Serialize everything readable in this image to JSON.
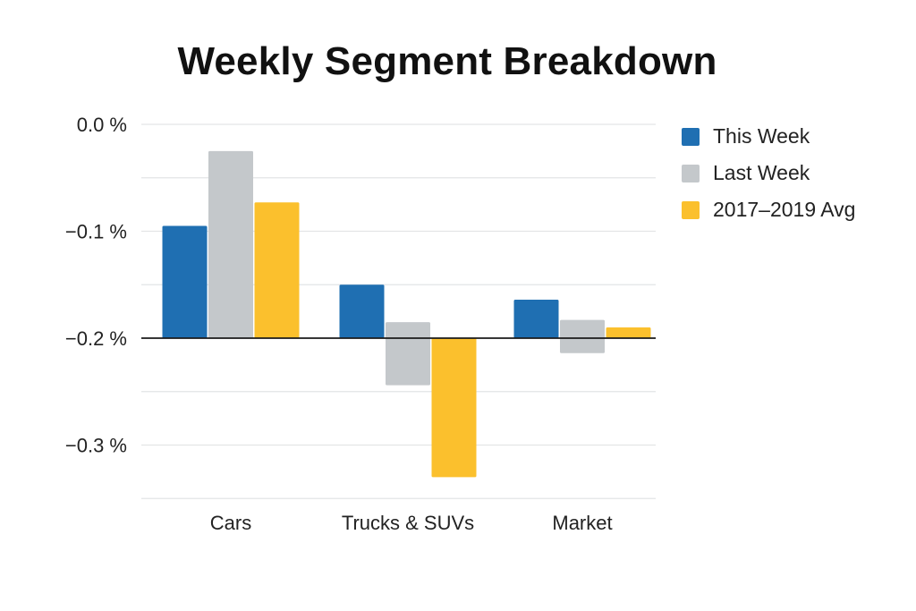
{
  "chart_data": {
    "type": "bar",
    "title": "Weekly Segment Breakdown",
    "xlabel": "",
    "ylabel": "",
    "categories": [
      "Cars",
      "Trucks & SUVs",
      "Market"
    ],
    "baseline": -0.2,
    "ylim": [
      -0.35,
      0.0
    ],
    "yticks": [
      0.0,
      -0.1,
      -0.2,
      -0.3
    ],
    "ytick_labels": [
      "0.0 %",
      "−0.1 %",
      "−0.2 %",
      "−0.3 %"
    ],
    "grid": true,
    "legend_position": "right",
    "series": [
      {
        "name": "This Week",
        "color": "#1f6fb2",
        "values": [
          -0.095,
          -0.15,
          -0.164
        ]
      },
      {
        "name": "Last Week",
        "color": "#c4c8cb",
        "values": [
          -0.025,
          -0.185,
          -0.183
        ],
        "low_values": [
          -0.2,
          -0.244,
          -0.214
        ]
      },
      {
        "name": "2017–2019 Avg",
        "color": "#fbc02d",
        "values": [
          -0.073,
          -0.33,
          -0.19
        ]
      }
    ]
  }
}
